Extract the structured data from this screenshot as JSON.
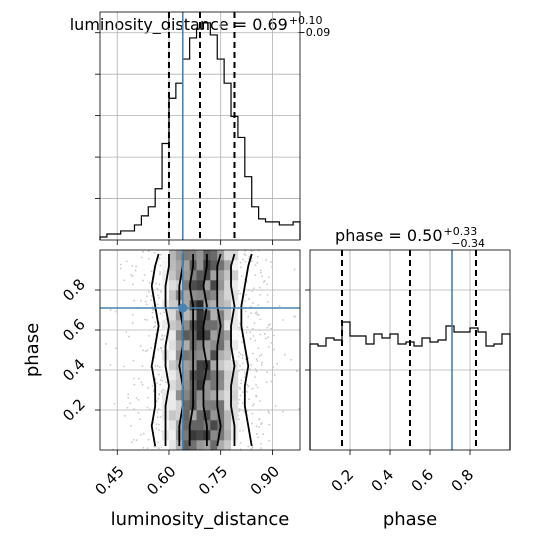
{
  "chart_data": [
    {
      "type": "histogram",
      "parameter": "luminosity_distance",
      "title": {
        "prefix": "luminosity_distance = ",
        "median": "0.69",
        "plus": "+0.10",
        "minus": "−0.09"
      },
      "xlim": [
        0.4,
        0.98
      ],
      "xticks": [],
      "quantiles": [
        0.6,
        0.69,
        0.79
      ],
      "truth": 0.64,
      "bin_edges": [
        0.4,
        0.42,
        0.44,
        0.46,
        0.48,
        0.5,
        0.52,
        0.54,
        0.56,
        0.58,
        0.6,
        0.62,
        0.64,
        0.66,
        0.68,
        0.7,
        0.72,
        0.74,
        0.76,
        0.78,
        0.8,
        0.82,
        0.84,
        0.86,
        0.88,
        0.9,
        0.92,
        0.94,
        0.96,
        0.98
      ],
      "counts": [
        1,
        2,
        2,
        3,
        3,
        5,
        8,
        11,
        17,
        32,
        47,
        52,
        60,
        67,
        70,
        72,
        68,
        60,
        52,
        41,
        34,
        21,
        11,
        7,
        6,
        6,
        5,
        5,
        6
      ],
      "grid": true
    },
    {
      "type": "heatmap",
      "x_parameter": "luminosity_distance",
      "y_parameter": "phase",
      "xlabel": "luminosity_distance",
      "ylabel": "phase",
      "xlim": [
        0.4,
        0.98
      ],
      "ylim": [
        0.0,
        1.0
      ],
      "xticks": [
        "0.45",
        "0.60",
        "0.75",
        "0.90"
      ],
      "xtick_values": [
        0.45,
        0.6,
        0.75,
        0.9
      ],
      "yticks": [
        "0.2",
        "0.4",
        "0.6",
        "0.8"
      ],
      "ytick_values": [
        0.2,
        0.4,
        0.6,
        0.8
      ],
      "truth": {
        "x": 0.64,
        "y": 0.71
      },
      "contour_levels": [
        {
          "x_left": [
            0.56,
            0.55,
            0.56,
            0.56,
            0.55,
            0.56,
            0.57,
            0.56,
            0.55,
            0.56,
            0.57
          ],
          "x_right": [
            0.84,
            0.83,
            0.82,
            0.82,
            0.83,
            0.82,
            0.81,
            0.81,
            0.82,
            0.83,
            0.84
          ]
        },
        {
          "x_left": [
            0.59,
            0.59,
            0.59,
            0.6,
            0.59,
            0.59,
            0.6,
            0.59,
            0.59,
            0.6,
            0.6
          ],
          "x_right": [
            0.79,
            0.79,
            0.78,
            0.78,
            0.79,
            0.78,
            0.78,
            0.79,
            0.78,
            0.78,
            0.79
          ]
        },
        {
          "x_left": [
            0.63,
            0.63,
            0.64,
            0.64,
            0.63,
            0.64,
            0.64,
            0.63,
            0.63,
            0.64,
            0.64
          ],
          "x_right": [
            0.74,
            0.75,
            0.74,
            0.74,
            0.74,
            0.74,
            0.75,
            0.74,
            0.74,
            0.74,
            0.75
          ]
        },
        {
          "x_left": [
            0.66,
            0.66,
            0.67,
            0.67,
            0.67,
            0.67,
            0.67,
            0.67,
            0.66,
            0.67,
            0.67
          ],
          "x_right": [
            0.71,
            0.71,
            0.7,
            0.7,
            0.71,
            0.7,
            0.7,
            0.71,
            0.7,
            0.71,
            0.71
          ]
        }
      ],
      "contour_y": [
        0.02,
        0.12,
        0.22,
        0.32,
        0.42,
        0.52,
        0.62,
        0.72,
        0.82,
        0.92,
        0.98
      ],
      "grid": true
    },
    {
      "type": "histogram",
      "parameter": "phase",
      "title": {
        "prefix": "phase = ",
        "median": "0.50",
        "plus": "+0.33",
        "minus": "−0.34"
      },
      "xlabel": "phase",
      "xlim": [
        0.0,
        1.0
      ],
      "xticks": [
        "0.2",
        "0.4",
        "0.6",
        "0.8"
      ],
      "xtick_values": [
        0.2,
        0.4,
        0.6,
        0.8
      ],
      "quantiles": [
        0.16,
        0.5,
        0.83
      ],
      "truth": 0.71,
      "bin_edges": [
        0.0,
        0.04,
        0.08,
        0.12,
        0.16,
        0.2,
        0.24,
        0.28,
        0.32,
        0.36,
        0.4,
        0.44,
        0.48,
        0.52,
        0.56,
        0.6,
        0.64,
        0.68,
        0.72,
        0.76,
        0.8,
        0.84,
        0.88,
        0.92,
        0.96,
        1.0
      ],
      "counts": [
        53,
        52,
        56,
        55,
        64,
        57,
        57,
        53,
        58,
        56,
        58,
        53,
        54,
        52,
        56,
        54,
        55,
        62,
        59,
        59,
        61,
        59,
        52,
        53,
        58
      ],
      "ymax": 100,
      "grid": true
    }
  ]
}
